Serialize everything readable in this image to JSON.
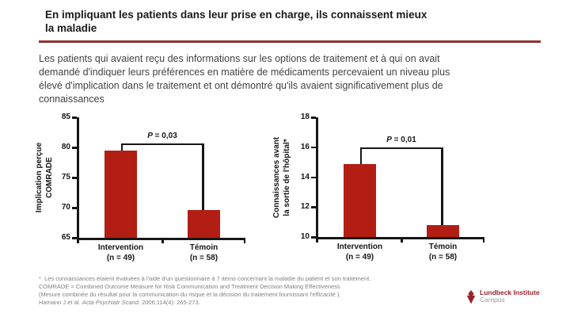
{
  "header": {
    "title": "En impliquant les patients dans leur prise en charge, ils connaissent mieux\nla maladie"
  },
  "intro": {
    "text": "Les patients qui avaient reçu des informations sur les options de traitement et à qui on avait\ndemandé d'indiquer leurs préférences en matière de médicaments percevaient un niveau plus\nélevé d'implication dans le traitement et ont démontré qu'ils avaient significativement plus de\nconnaissances"
  },
  "chart_data": [
    {
      "type": "bar",
      "title": "",
      "ylabel_lines": [
        "Implication perçue",
        "COMRADE"
      ],
      "categories": [
        [
          "Intervention",
          "(n = 49)"
        ],
        [
          "Témoin",
          "(n = 58)"
        ]
      ],
      "values": [
        79.5,
        69.6
      ],
      "ylim": [
        65,
        85
      ],
      "yticks": [
        65,
        70,
        75,
        80,
        85
      ],
      "annotation": {
        "text": "P = 0,03",
        "bracket_y": 80.7
      },
      "grid": "off",
      "legend": "none"
    },
    {
      "type": "bar",
      "title": "",
      "ylabel_lines": [
        "Connaissances avant",
        "la sortie de l'hôpital*"
      ],
      "categories": [
        [
          "Intervention",
          "(n = 49)"
        ],
        [
          "Témoin",
          "(n = 58)"
        ]
      ],
      "values": [
        14.9,
        10.8
      ],
      "ylim": [
        10,
        18
      ],
      "yticks": [
        10,
        12,
        14,
        16,
        18
      ],
      "annotation": {
        "text": "P = 0,01",
        "bracket_y": 16
      },
      "grid": "off",
      "legend": "none"
    }
  ],
  "footnotes": {
    "line1": "*  Les connaissances étaient évaluées à l'aide d'un questionnaire à 7 items concernant la maladie du patient et son traitement.",
    "line2": "COMRADE = Combined Outcome Measure for Risk Communication and Treatment Decision Making Effectiveness",
    "line3": "(Mesure combinée du résultat pour la communication du risque et la décision du traitement fournissant l'efficacité ).",
    "citation_prefix": "Hamann J et al. ",
    "citation_journal": "Acta Psychiatr Scand.",
    "citation_suffix": " 2006;114(4): 265-273."
  },
  "logo": {
    "brand": "Lundbeck Institute",
    "sub": "Campus",
    "color": "#9e222c",
    "sub_color": "#9b9b9b"
  },
  "colors": {
    "bar": "#b21e14",
    "accent_rule": "#8c3330",
    "axis": "#161616"
  }
}
